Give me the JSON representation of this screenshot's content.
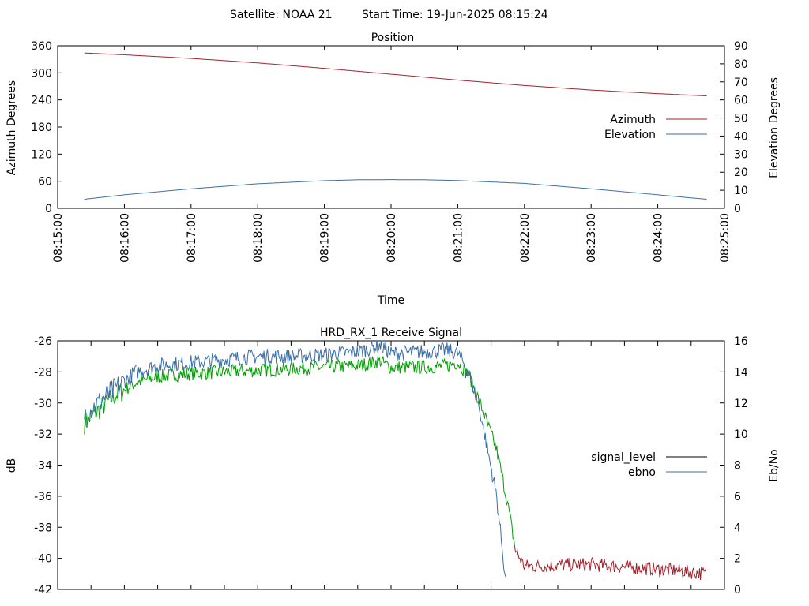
{
  "header": {
    "satellite_label": "Satellite: NOAA 21",
    "start_time_label": "Start Time: 19-Jun-2025 08:15:24"
  },
  "chart_data": [
    {
      "type": "line",
      "title": "Position",
      "xlabel": "Time",
      "ylabel": "Azimuth Degrees",
      "y2label": "Elevation Degrees",
      "xticks": [
        "08:15:00",
        "08:16:00",
        "08:17:00",
        "08:18:00",
        "08:19:00",
        "08:20:00",
        "08:21:00",
        "08:22:00",
        "08:23:00",
        "08:24:00",
        "08:25:00"
      ],
      "xlim_seconds": [
        0,
        600
      ],
      "ylim": [
        0,
        360
      ],
      "yticks": [
        0,
        60,
        120,
        180,
        240,
        300,
        360
      ],
      "y2lim": [
        0,
        90
      ],
      "y2ticks": [
        0,
        10,
        20,
        30,
        40,
        50,
        60,
        70,
        80,
        90
      ],
      "legend_position": "right-middle",
      "series": [
        {
          "name": "Azimuth",
          "axis": "y",
          "color": "#a0202a",
          "x_seconds": [
            24,
            60,
            120,
            180,
            240,
            300,
            360,
            420,
            480,
            540,
            584
          ],
          "values": [
            344,
            340,
            332,
            322,
            310,
            297,
            284,
            272,
            262,
            254,
            249
          ]
        },
        {
          "name": "Elevation",
          "axis": "y2",
          "color": "#3a6fa6",
          "x_seconds": [
            24,
            60,
            120,
            180,
            240,
            270,
            300,
            330,
            360,
            420,
            480,
            540,
            584
          ],
          "values": [
            5,
            7.5,
            10.8,
            13.6,
            15.3,
            15.8,
            15.9,
            15.8,
            15.4,
            13.8,
            10.8,
            7.5,
            5
          ]
        }
      ]
    },
    {
      "type": "line",
      "title": "HRD_RX_1 Receive Signal",
      "ylabel": "dB",
      "y2label": "Eb/No",
      "ylim": [
        -42,
        -26
      ],
      "yticks": [
        -42,
        -40,
        -38,
        -36,
        -34,
        -32,
        -30,
        -28,
        -26
      ],
      "y2lim": [
        0,
        16
      ],
      "y2ticks": [
        0,
        2,
        4,
        6,
        8,
        10,
        12,
        14,
        16
      ],
      "xlim_seconds": [
        0,
        600
      ],
      "xtick_count": 21,
      "legend_position": "right-middle",
      "series": [
        {
          "name": "signal_level",
          "axis": "y",
          "color": "#00a000",
          "color_after_loss": "#a0202a",
          "loss_x_seconds": 412,
          "noise": 0.45,
          "x_seconds": [
            24,
            30,
            50,
            70,
            90,
            120,
            150,
            180,
            210,
            240,
            270,
            290,
            300,
            330,
            350,
            360,
            370,
            380,
            395,
            405,
            412,
            420,
            440,
            460,
            480,
            500,
            520,
            540,
            560,
            584
          ],
          "values": [
            -31.3,
            -30.9,
            -29.6,
            -28.7,
            -28.3,
            -28.1,
            -28.0,
            -27.9,
            -27.8,
            -27.7,
            -27.6,
            -27.3,
            -27.7,
            -27.7,
            -27.6,
            -27.4,
            -28.2,
            -30.0,
            -33.0,
            -36.5,
            -39.5,
            -40.5,
            -40.5,
            -40.4,
            -40.4,
            -40.5,
            -40.6,
            -40.7,
            -40.8,
            -41.0
          ]
        },
        {
          "name": "ebno",
          "axis": "y2",
          "color": "#3a6fa6",
          "noise": 0.5,
          "x_seconds": [
            24,
            30,
            50,
            70,
            90,
            120,
            150,
            180,
            210,
            240,
            270,
            290,
            300,
            330,
            350,
            360,
            370,
            380,
            395,
            404
          ],
          "values": [
            11.3,
            11.6,
            12.8,
            14.0,
            14.4,
            14.6,
            14.8,
            15.0,
            15.0,
            15.1,
            15.3,
            15.7,
            15.2,
            15.3,
            15.4,
            15.2,
            14.0,
            11.5,
            6.0,
            0.0
          ]
        }
      ]
    }
  ]
}
